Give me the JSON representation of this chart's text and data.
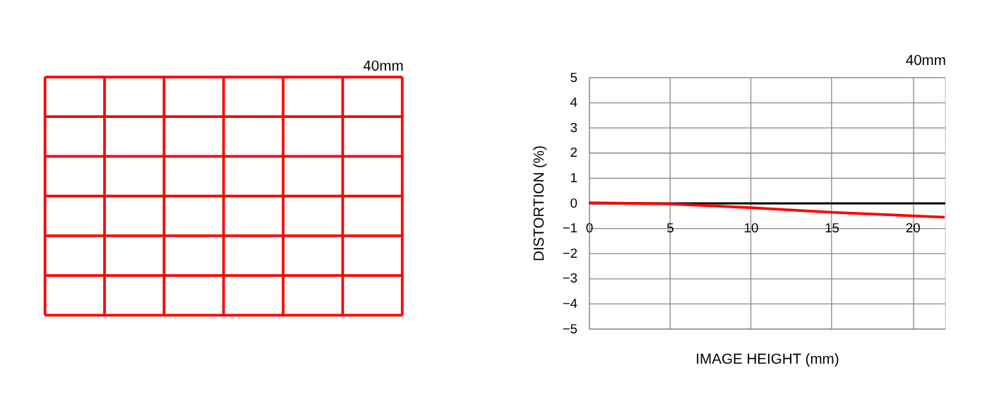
{
  "chart_data": [
    {
      "type": "other",
      "title": "40mm"
    },
    {
      "type": "line",
      "title": "40mm",
      "xlabel": "IMAGE HEIGHT (mm)",
      "ylabel": "DISTORTION (%)",
      "x": [
        0,
        2.5,
        5,
        7.5,
        10,
        12.5,
        15,
        17.5,
        20,
        22
      ],
      "series": [
        {
          "color": "#ff0000",
          "values": [
            0,
            -0.02,
            -0.05,
            -0.12,
            -0.2,
            -0.29,
            -0.38,
            -0.45,
            -0.52,
            -0.58
          ]
        }
      ],
      "xlim": [
        0,
        22
      ],
      "xticks": [
        0,
        5,
        10,
        15,
        20
      ],
      "ylim": [
        -5,
        5
      ],
      "yticks": [
        -5,
        -4,
        -3,
        -2,
        -1,
        0,
        1,
        2,
        3,
        4,
        5
      ],
      "grid": true,
      "line_style": "solid",
      "marker": "none"
    }
  ]
}
